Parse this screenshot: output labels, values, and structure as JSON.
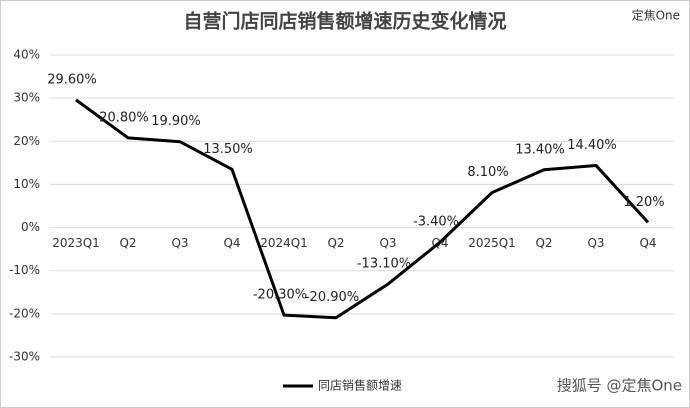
{
  "chart_data": {
    "type": "line",
    "title": "自营门店同店销售额增速历史变化情况",
    "annotations": [
      "定焦One",
      "搜狐号 @定焦One"
    ],
    "categories": [
      "2023Q1",
      "Q2",
      "Q3",
      "Q4",
      "2024Q1",
      "Q2",
      "Q3",
      "Q4",
      "2025Q1",
      "Q2",
      "Q3",
      "Q4"
    ],
    "series": [
      {
        "name": "同店销售额增速",
        "color": "#000000",
        "values": [
          29.6,
          20.8,
          19.9,
          13.5,
          -20.3,
          -20.9,
          -13.1,
          -3.4,
          8.1,
          13.4,
          14.4,
          1.2
        ],
        "value_labels": [
          "29.60%",
          "20.80%",
          "19.90%",
          "13.50%",
          "-20.30%",
          "-20.90%",
          "-13.10%",
          "-3.40%",
          "8.10%",
          "13.40%",
          "14.40%",
          "1.20%"
        ]
      }
    ],
    "ylim": [
      -30,
      40
    ],
    "yticks": [
      {
        "value": -30,
        "label": "-30%"
      },
      {
        "value": -20,
        "label": "-20%"
      },
      {
        "value": -10,
        "label": "-10%"
      },
      {
        "value": 0,
        "label": "0%"
      },
      {
        "value": 10,
        "label": "10%"
      },
      {
        "value": 20,
        "label": "20%"
      },
      {
        "value": 30,
        "label": "30%"
      },
      {
        "value": 40,
        "label": "40%"
      }
    ],
    "grid": true,
    "legend": "bottom"
  }
}
